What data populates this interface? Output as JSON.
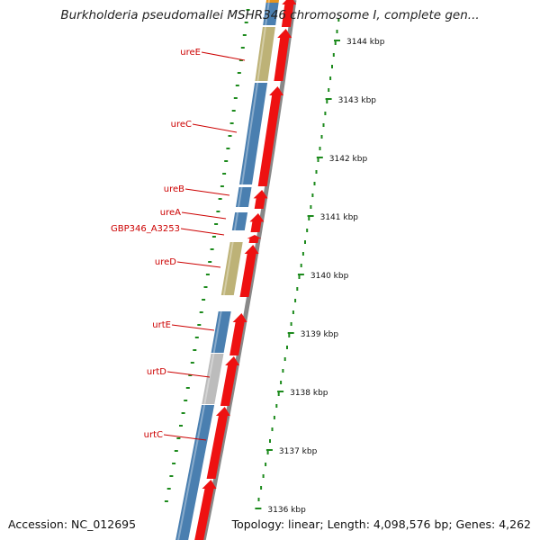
{
  "title": "Burkholderia pseudomallei MSHR346 chromosome I, complete gen...",
  "accession": "Accession: NC_012695",
  "summary": "Topology: linear; Length: 4,098,576 bp; Genes: 4,262",
  "colors": {
    "gene_blue": "#4a7fb0",
    "gene_khaki": "#bdb277",
    "gene_gray": "#bcbcbc",
    "gene_orange": "#e6941e",
    "cds_red": "#ee1111",
    "label_red": "#cc0000",
    "tick_green": "#1c8a1c",
    "backbone": "#888888"
  },
  "ruler": {
    "unit": "kbp",
    "ticks": [
      {
        "label": "3144 kbp"
      },
      {
        "label": "3143 kbp"
      },
      {
        "label": "3142 kbp"
      },
      {
        "label": "3141 kbp"
      },
      {
        "label": "3140 kbp"
      },
      {
        "label": "3139 kbp"
      },
      {
        "label": "3138 kbp"
      },
      {
        "label": "3137 kbp"
      },
      {
        "label": "3136 kbp"
      }
    ]
  },
  "genes": [
    {
      "name": "ureE"
    },
    {
      "name": "ureC"
    },
    {
      "name": "ureB"
    },
    {
      "name": "ureA"
    },
    {
      "name": "GBP346_A3253"
    },
    {
      "name": "ureD"
    },
    {
      "name": "urtE"
    },
    {
      "name": "urtD"
    },
    {
      "name": "urtC"
    }
  ]
}
